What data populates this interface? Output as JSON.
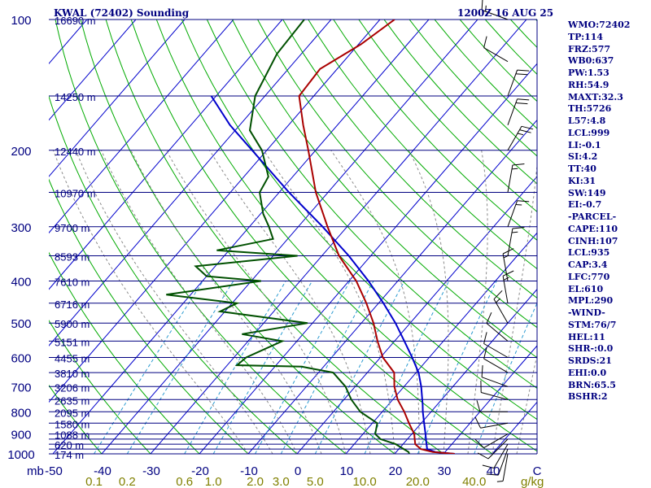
{
  "title_left": "KWAL (72402) Sounding",
  "title_right": "1200Z 16 AUG 25",
  "sidebar": [
    "WMO:72402",
    "TP:114",
    "FRZ:577",
    "WB0:637",
    "PW:1.53",
    "RH:54.9",
    "MAXT:32.3",
    "TH:5726",
    "L57:4.8",
    "LCL:999",
    "LI:-0.1",
    "SI:4.2",
    "TT:40",
    "KI:31",
    "SW:149",
    "EI:-0.7",
    "-PARCEL-",
    "CAPE:110",
    "CINH:107",
    "LCL:935",
    "CAP:3.4",
    "LFC:770",
    "EL:610",
    "MPL:290",
    "-WIND-",
    "STM:76/7",
    "HEL:11",
    "SHR-:0.0",
    "SRDS:21",
    "EHI:0.0",
    "BRN:65.5",
    "BSHR:2"
  ],
  "colors": {
    "isobar": "#000080",
    "isotherm": "#0000cc",
    "dry_adiabat": "#00aa00",
    "moist_adiabat": "#8a8a8a",
    "mixing_ratio": "#2a9ad0",
    "temperature": "#aa0000",
    "dewpoint": "#005000",
    "parcel": "#0000cc",
    "text": "#000080",
    "mixing_labels": "#808000"
  },
  "chart_data": {
    "type": "skew-t",
    "pressure_axis": {
      "unit": "mb",
      "range": [
        1000,
        100
      ],
      "scale": "log",
      "tick_labels": [
        "100",
        "200",
        "300",
        "400",
        "500",
        "600",
        "700",
        "800",
        "900",
        "1000"
      ]
    },
    "temperature_axis": {
      "range": [
        -50,
        50
      ],
      "tick_labels": [
        "-50",
        "-40",
        "-30",
        "-20",
        "-10",
        "0",
        "10",
        "20",
        "30",
        "40",
        "C"
      ]
    },
    "isobars_mb": [
      100,
      150,
      200,
      250,
      300,
      350,
      400,
      450,
      500,
      550,
      600,
      650,
      700,
      750,
      800,
      850,
      900,
      925,
      950,
      975,
      1000
    ],
    "height_labels": [
      {
        "p": 100,
        "text": "16690 m"
      },
      {
        "p": 150,
        "text": "14250 m"
      },
      {
        "p": 200,
        "text": "12440 m"
      },
      {
        "p": 250,
        "text": "10970 m"
      },
      {
        "p": 300,
        "text": "9700 m"
      },
      {
        "p": 350,
        "text": "8593 m"
      },
      {
        "p": 400,
        "text": "7610 m"
      },
      {
        "p": 450,
        "text": "6716 m"
      },
      {
        "p": 500,
        "text": "5900 m"
      },
      {
        "p": 550,
        "text": "5151 m"
      },
      {
        "p": 600,
        "text": "4455 m"
      },
      {
        "p": 650,
        "text": "3810 m"
      },
      {
        "p": 700,
        "text": "3206 m"
      },
      {
        "p": 750,
        "text": "2635 m"
      },
      {
        "p": 800,
        "text": "2095 m"
      },
      {
        "p": 850,
        "text": "1580 m"
      },
      {
        "p": 900,
        "text": "1088 m"
      },
      {
        "p": 950,
        "text": "620 m"
      },
      {
        "p": 1000,
        "text": "174 m"
      }
    ],
    "mixing_ratio_labels": [
      "0.1",
      "0.2",
      "0.6",
      "1.0",
      "2.0",
      "3.0",
      "5.0",
      "10.0",
      "20.0",
      "40.0"
    ],
    "mixing_ratio_values": [
      0.1,
      0.2,
      0.6,
      1.0,
      2.0,
      3.0,
      5.0,
      10.0,
      20.0,
      40.0
    ],
    "mixing_ratio_unit": "g/kg",
    "temperature_profile": [
      [
        1000,
        32.3
      ],
      [
        990,
        27.5
      ],
      [
        975,
        24.5
      ],
      [
        950,
        22.5
      ],
      [
        925,
        21.5
      ],
      [
        900,
        20.5
      ],
      [
        850,
        17.5
      ],
      [
        800,
        14.5
      ],
      [
        750,
        11.0
      ],
      [
        700,
        8.0
      ],
      [
        650,
        5.5
      ],
      [
        600,
        0.5
      ],
      [
        550,
        -3.5
      ],
      [
        500,
        -7.5
      ],
      [
        450,
        -12.5
      ],
      [
        400,
        -18.5
      ],
      [
        350,
        -26.5
      ],
      [
        300,
        -34.0
      ],
      [
        250,
        -42.5
      ],
      [
        200,
        -51.5
      ],
      [
        175,
        -57.0
      ],
      [
        150,
        -63.0
      ],
      [
        130,
        -63.5
      ],
      [
        114,
        -59.5
      ],
      [
        100,
        -57.0
      ]
    ],
    "dewpoint_profile": [
      [
        1000,
        23.0
      ],
      [
        990,
        22.5
      ],
      [
        975,
        21.0
      ],
      [
        950,
        18.5
      ],
      [
        925,
        14.5
      ],
      [
        900,
        12.5
      ],
      [
        850,
        11.0
      ],
      [
        800,
        5.5
      ],
      [
        750,
        1.5
      ],
      [
        700,
        -2.0
      ],
      [
        650,
        -7.0
      ],
      [
        630,
        -14.5
      ],
      [
        625,
        -28.0
      ],
      [
        600,
        -27.5
      ],
      [
        550,
        -23.0
      ],
      [
        530,
        -32.5
      ],
      [
        500,
        -21.0
      ],
      [
        470,
        -41.0
      ],
      [
        450,
        -39.0
      ],
      [
        430,
        -55.0
      ],
      [
        400,
        -38.0
      ],
      [
        390,
        -50.0
      ],
      [
        370,
        -54.0
      ],
      [
        350,
        -35.0
      ],
      [
        340,
        -52.5
      ],
      [
        320,
        -43.0
      ],
      [
        300,
        -46.0
      ],
      [
        280,
        -49.5
      ],
      [
        250,
        -54.0
      ],
      [
        230,
        -55.0
      ],
      [
        200,
        -61.0
      ],
      [
        180,
        -67.0
      ],
      [
        150,
        -72.0
      ],
      [
        120,
        -75.0
      ],
      [
        100,
        -75.5
      ]
    ],
    "parcel_profile": [
      [
        1000,
        32.3
      ],
      [
        990,
        28.0
      ],
      [
        975,
        25.8
      ],
      [
        935,
        24.2
      ],
      [
        900,
        22.8
      ],
      [
        850,
        20.6
      ],
      [
        800,
        18.3
      ],
      [
        770,
        17.0
      ],
      [
        700,
        13.5
      ],
      [
        650,
        10.5
      ],
      [
        600,
        6.5
      ],
      [
        550,
        2.0
      ],
      [
        500,
        -3.0
      ],
      [
        450,
        -9.0
      ],
      [
        400,
        -16.0
      ],
      [
        350,
        -24.5
      ],
      [
        300,
        -35.0
      ],
      [
        250,
        -48.0
      ],
      [
        200,
        -63.0
      ],
      [
        175,
        -72.0
      ],
      [
        150,
        -81.0
      ]
    ],
    "wind_barbs": [
      {
        "p": 1000,
        "dir": 190,
        "spd": 5
      },
      {
        "p": 975,
        "dir": 200,
        "spd": 10
      },
      {
        "p": 950,
        "dir": 210,
        "spd": 10
      },
      {
        "p": 925,
        "dir": 225,
        "spd": 10
      },
      {
        "p": 900,
        "dir": 240,
        "spd": 10
      },
      {
        "p": 850,
        "dir": 260,
        "spd": 10
      },
      {
        "p": 800,
        "dir": 270,
        "spd": 10
      },
      {
        "p": 750,
        "dir": 285,
        "spd": 10
      },
      {
        "p": 700,
        "dir": 290,
        "spd": 10
      },
      {
        "p": 650,
        "dir": 300,
        "spd": 10
      },
      {
        "p": 600,
        "dir": 300,
        "spd": 10
      },
      {
        "p": 550,
        "dir": 310,
        "spd": 10
      },
      {
        "p": 500,
        "dir": 330,
        "spd": 15
      },
      {
        "p": 450,
        "dir": 350,
        "spd": 15
      },
      {
        "p": 400,
        "dir": 350,
        "spd": 15
      },
      {
        "p": 350,
        "dir": 10,
        "spd": 15
      },
      {
        "p": 300,
        "dir": 20,
        "spd": 15
      },
      {
        "p": 250,
        "dir": 10,
        "spd": 15
      },
      {
        "p": 200,
        "dir": 30,
        "spd": 25
      },
      {
        "p": 175,
        "dir": 20,
        "spd": 20
      },
      {
        "p": 150,
        "dir": 20,
        "spd": 20
      },
      {
        "p": 125,
        "dir": 300,
        "spd": 10
      },
      {
        "p": 100,
        "dir": 290,
        "spd": 15
      }
    ]
  }
}
